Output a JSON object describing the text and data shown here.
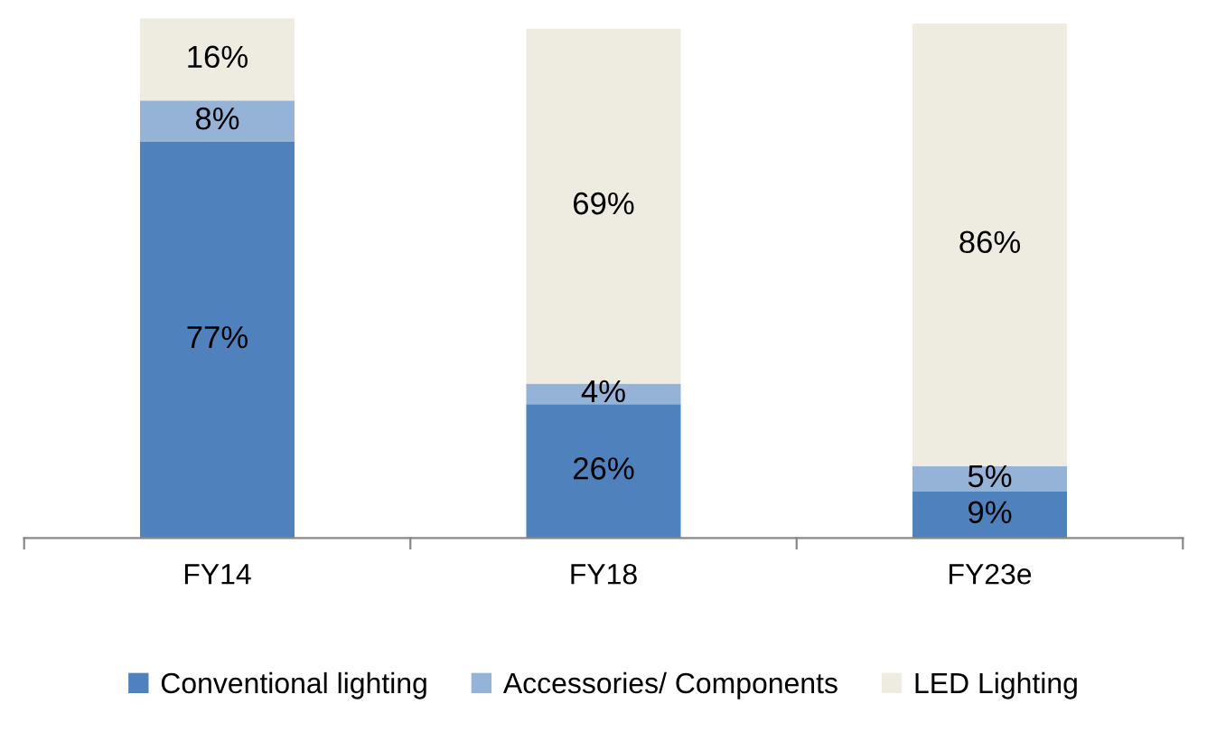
{
  "chart_data": {
    "type": "bar",
    "stacked": true,
    "categories": [
      "FY14",
      "FY18",
      "FY23e"
    ],
    "series": [
      {
        "name": "Conventional lighting",
        "color": "#4f81bd",
        "values": [
          77,
          26,
          9
        ],
        "value_labels": [
          "77%",
          "26%",
          "9%"
        ]
      },
      {
        "name": "Accessories/ Components",
        "color": "#95b3d7",
        "values": [
          8,
          4,
          5
        ],
        "value_labels": [
          "8%",
          "4%",
          "5%"
        ]
      },
      {
        "name": "LED Lighting",
        "color": "#eeece1",
        "values": [
          16,
          69,
          86
        ],
        "value_labels": [
          "16%",
          "69%",
          "86%"
        ]
      }
    ],
    "legend": "bottom",
    "tick_labels": "x"
  }
}
